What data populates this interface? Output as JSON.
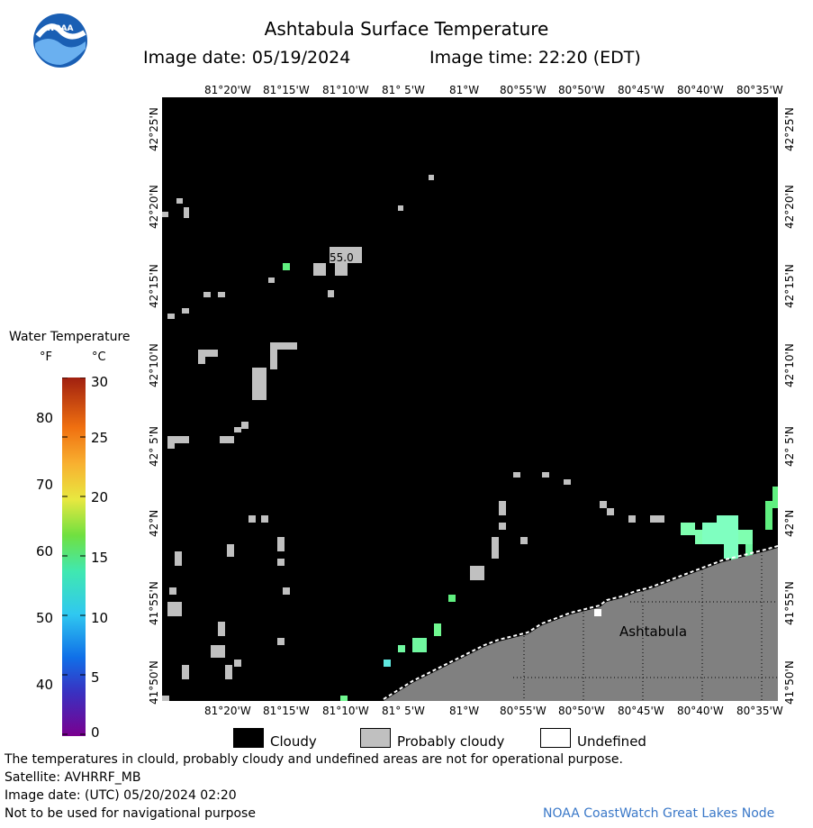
{
  "header": {
    "title": "Ashtabula Surface Temperature",
    "image_date": "Image date: 05/19/2024",
    "image_time": "Image time: 22:20 (EDT)",
    "logo_text": "NOAA"
  },
  "map": {
    "lon_ticks": [
      "81°20'W",
      "81°15'W",
      "81°10'W",
      "81° 5'W",
      "81°W",
      "80°55'W",
      "80°50'W",
      "80°45'W",
      "80°40'W",
      "80°35'W"
    ],
    "lat_ticks": [
      "42°25'N",
      "42°20'N",
      "42°15'N",
      "42°10'N",
      "42° 5'N",
      "42°N",
      "41°55'N",
      "41°50'N"
    ],
    "point_label": "55.0",
    "place_label": "Ashtabula",
    "colors": {
      "cloudy": "#000000",
      "probably_cloudy": "#c0c0c0",
      "land": "#808080",
      "undefined": "#ffffff",
      "water_warm": "#7fffc0"
    }
  },
  "colorbar": {
    "title": "Water Temperature",
    "unit_f": "°F",
    "unit_c": "°C",
    "f_ticks": [
      "80",
      "70",
      "60",
      "50",
      "40"
    ],
    "c_ticks": [
      "30",
      "25",
      "20",
      "15",
      "10",
      "5",
      "0"
    ],
    "range_c": [
      0,
      30
    ]
  },
  "legend": {
    "items": [
      {
        "label": "Cloudy",
        "color": "#000000"
      },
      {
        "label": "Probably cloudy",
        "color": "#c0c0c0"
      },
      {
        "label": "Undefined",
        "color": "#ffffff"
      }
    ]
  },
  "footer": {
    "line1": "The temperatures in clould, probably cloudy and undefined areas are not for operational purpose.",
    "line2": "Satellite: AVHRRF_MB",
    "line3": "Image date: (UTC) 05/20/2024  02:20",
    "line4": "Not to be used for navigational purpose",
    "credit": "NOAA CoastWatch Great Lakes Node"
  }
}
